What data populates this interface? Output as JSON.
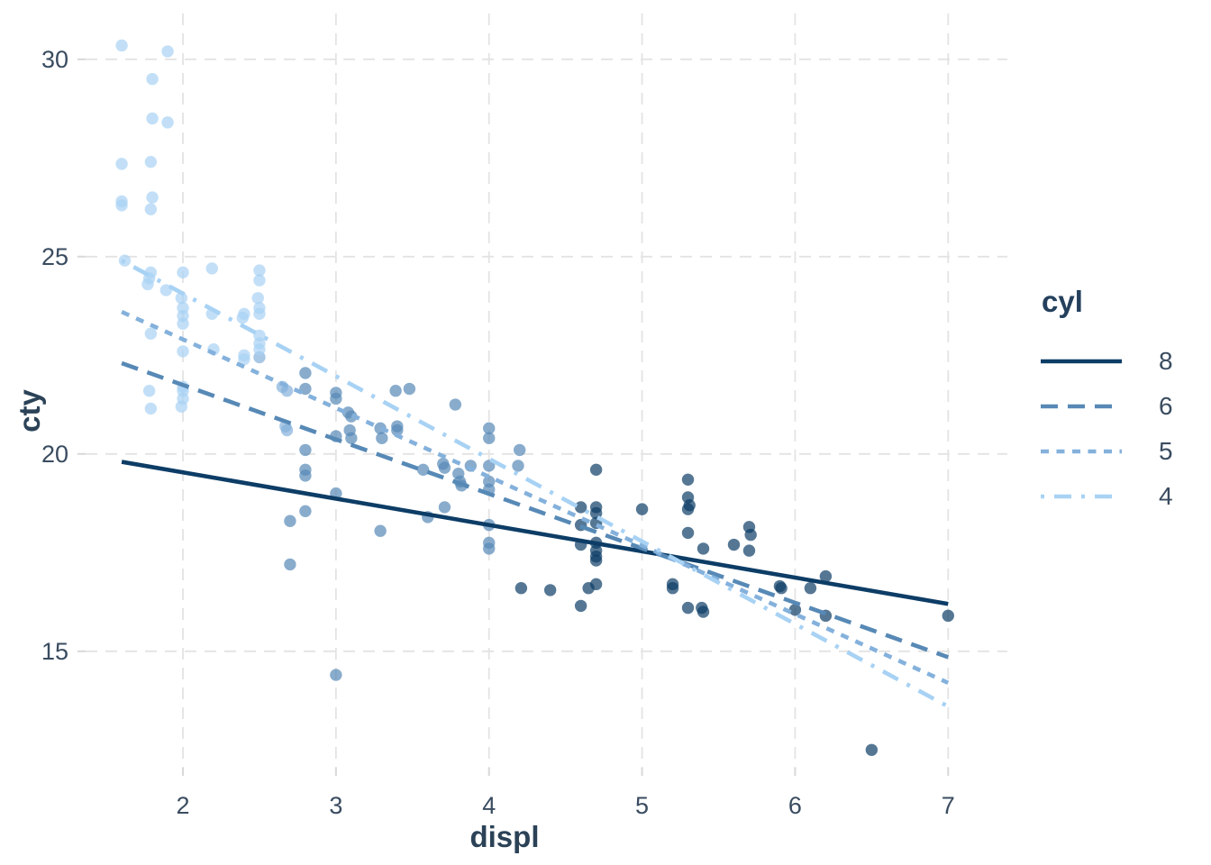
{
  "chart_data": {
    "type": "scatter",
    "title": "",
    "xlabel": "displ",
    "ylabel": "cty",
    "x_ticks": [
      2,
      3,
      4,
      5,
      6,
      7
    ],
    "y_ticks": [
      15,
      20,
      25,
      30
    ],
    "xlim": [
      1.364,
      7.387
    ],
    "ylim": [
      12.05,
      31.16
    ],
    "grid": "major-dashed",
    "colors": {
      "grid": "#e3e3e3",
      "tick_mark": "#d8d8d8",
      "tick_label": "#3a4c60",
      "axis_title": "#2b4257",
      "legend_title": "#24405c"
    },
    "legend": {
      "title": "cyl",
      "position": "right",
      "entries": [
        {
          "value": "8",
          "color": "#0d3d66",
          "linetype": "solid"
        },
        {
          "value": "6",
          "color": "#5789b6",
          "linetype": "longdash"
        },
        {
          "value": "5",
          "color": "#84b1dc",
          "linetype": "shortdash"
        },
        {
          "value": "4",
          "color": "#a8d2f4",
          "linetype": "dotdash"
        }
      ]
    },
    "series": [
      {
        "name": "8",
        "color": "#0d3d66",
        "linetype": "solid",
        "trend": {
          "x": [
            1.6,
            7.0
          ],
          "y": [
            19.8,
            16.2
          ]
        },
        "points": [
          [
            4.21,
            16.6
          ],
          [
            4.4,
            16.55
          ],
          [
            4.6,
            18.65
          ],
          [
            4.6,
            18.2
          ],
          [
            4.6,
            17.7
          ],
          [
            4.6,
            16.15
          ],
          [
            4.7,
            19.6
          ],
          [
            4.7,
            18.65
          ],
          [
            4.7,
            18.5
          ],
          [
            4.7,
            18.25
          ],
          [
            4.7,
            17.75
          ],
          [
            4.7,
            17.55
          ],
          [
            4.7,
            17.4
          ],
          [
            4.7,
            17.3
          ],
          [
            4.7,
            16.7
          ],
          [
            4.65,
            16.6
          ],
          [
            5.0,
            18.6
          ],
          [
            5.2,
            16.7
          ],
          [
            5.2,
            16.6
          ],
          [
            5.3,
            19.35
          ],
          [
            5.3,
            18.9
          ],
          [
            5.31,
            18.7
          ],
          [
            5.3,
            18.6
          ],
          [
            5.3,
            18.0
          ],
          [
            5.3,
            16.1
          ],
          [
            5.4,
            17.6
          ],
          [
            5.39,
            16.1
          ],
          [
            5.4,
            16.0
          ],
          [
            5.6,
            17.7
          ],
          [
            5.7,
            18.15
          ],
          [
            5.71,
            17.95
          ],
          [
            5.7,
            17.55
          ],
          [
            5.9,
            16.65
          ],
          [
            5.91,
            16.6
          ],
          [
            6.0,
            16.05
          ],
          [
            6.1,
            16.6
          ],
          [
            6.2,
            16.9
          ],
          [
            6.2,
            15.9
          ],
          [
            6.5,
            12.5
          ],
          [
            7.0,
            15.9
          ]
        ]
      },
      {
        "name": "6",
        "color": "#5789b6",
        "linetype": "longdash",
        "trend": {
          "x": [
            1.6,
            7.0
          ],
          "y": [
            22.3,
            14.85
          ]
        },
        "points": [
          [
            2.7,
            18.3
          ],
          [
            2.7,
            17.2
          ],
          [
            2.8,
            22.05
          ],
          [
            2.8,
            21.65
          ],
          [
            2.8,
            20.1
          ],
          [
            2.8,
            19.6
          ],
          [
            2.8,
            19.45
          ],
          [
            2.8,
            18.55
          ],
          [
            3.0,
            21.55
          ],
          [
            3.0,
            21.4
          ],
          [
            3.0,
            20.45
          ],
          [
            3.0,
            19.0
          ],
          [
            3.0,
            14.4
          ],
          [
            3.08,
            21.05
          ],
          [
            3.1,
            20.95
          ],
          [
            3.09,
            20.6
          ],
          [
            3.1,
            20.4
          ],
          [
            3.29,
            20.65
          ],
          [
            3.3,
            20.4
          ],
          [
            3.29,
            18.05
          ],
          [
            3.39,
            21.6
          ],
          [
            3.4,
            20.7
          ],
          [
            3.4,
            20.6
          ],
          [
            3.48,
            21.65
          ],
          [
            3.57,
            19.6
          ],
          [
            3.6,
            18.4
          ],
          [
            3.7,
            19.75
          ],
          [
            3.71,
            19.65
          ],
          [
            3.71,
            18.65
          ],
          [
            3.78,
            21.25
          ],
          [
            3.8,
            19.5
          ],
          [
            3.81,
            19.3
          ],
          [
            3.82,
            19.2
          ],
          [
            3.88,
            19.7
          ],
          [
            4.0,
            20.65
          ],
          [
            4.0,
            20.4
          ],
          [
            4.0,
            19.7
          ],
          [
            4.0,
            19.3
          ],
          [
            4.0,
            19.1
          ],
          [
            4.0,
            18.2
          ],
          [
            4.0,
            17.75
          ],
          [
            4.0,
            17.6
          ],
          [
            4.2,
            20.1
          ],
          [
            4.19,
            19.7
          ]
        ]
      },
      {
        "name": "5",
        "color": "#84b1dc",
        "linetype": "shortdash",
        "trend": {
          "x": [
            1.6,
            7.0
          ],
          "y": [
            23.6,
            14.2
          ]
        },
        "points": [
          [
            2.5,
            22.45
          ],
          [
            2.65,
            21.7
          ],
          [
            2.68,
            21.6
          ],
          [
            2.67,
            20.7
          ],
          [
            2.68,
            20.6
          ]
        ]
      },
      {
        "name": "4",
        "color": "#a8d2f4",
        "linetype": "dotdash",
        "trend": {
          "x": [
            1.6,
            7.0
          ],
          "y": [
            24.9,
            13.6
          ]
        },
        "points": [
          [
            1.6,
            30.35
          ],
          [
            1.6,
            27.35
          ],
          [
            1.6,
            26.4
          ],
          [
            1.6,
            26.3
          ],
          [
            1.62,
            24.9
          ],
          [
            1.8,
            29.5
          ],
          [
            1.8,
            28.5
          ],
          [
            1.79,
            27.4
          ],
          [
            1.8,
            26.5
          ],
          [
            1.79,
            26.2
          ],
          [
            1.79,
            24.6
          ],
          [
            1.78,
            24.45
          ],
          [
            1.77,
            24.3
          ],
          [
            1.79,
            23.05
          ],
          [
            1.78,
            21.6
          ],
          [
            1.79,
            21.15
          ],
          [
            1.9,
            30.2
          ],
          [
            1.9,
            28.4
          ],
          [
            1.89,
            24.15
          ],
          [
            2.0,
            24.6
          ],
          [
            1.99,
            23.95
          ],
          [
            2.0,
            23.7
          ],
          [
            2.0,
            23.5
          ],
          [
            2.0,
            23.3
          ],
          [
            2.0,
            22.6
          ],
          [
            2.0,
            21.7
          ],
          [
            2.0,
            21.6
          ],
          [
            2.0,
            21.4
          ],
          [
            1.99,
            21.2
          ],
          [
            2.19,
            24.7
          ],
          [
            2.19,
            23.55
          ],
          [
            2.2,
            22.65
          ],
          [
            2.4,
            23.55
          ],
          [
            2.39,
            23.45
          ],
          [
            2.4,
            22.5
          ],
          [
            2.4,
            22.4
          ],
          [
            2.5,
            24.65
          ],
          [
            2.5,
            24.4
          ],
          [
            2.49,
            23.95
          ],
          [
            2.5,
            23.7
          ],
          [
            2.5,
            23.55
          ],
          [
            2.5,
            23.0
          ],
          [
            2.5,
            22.8
          ],
          [
            2.5,
            22.65
          ]
        ]
      }
    ]
  }
}
